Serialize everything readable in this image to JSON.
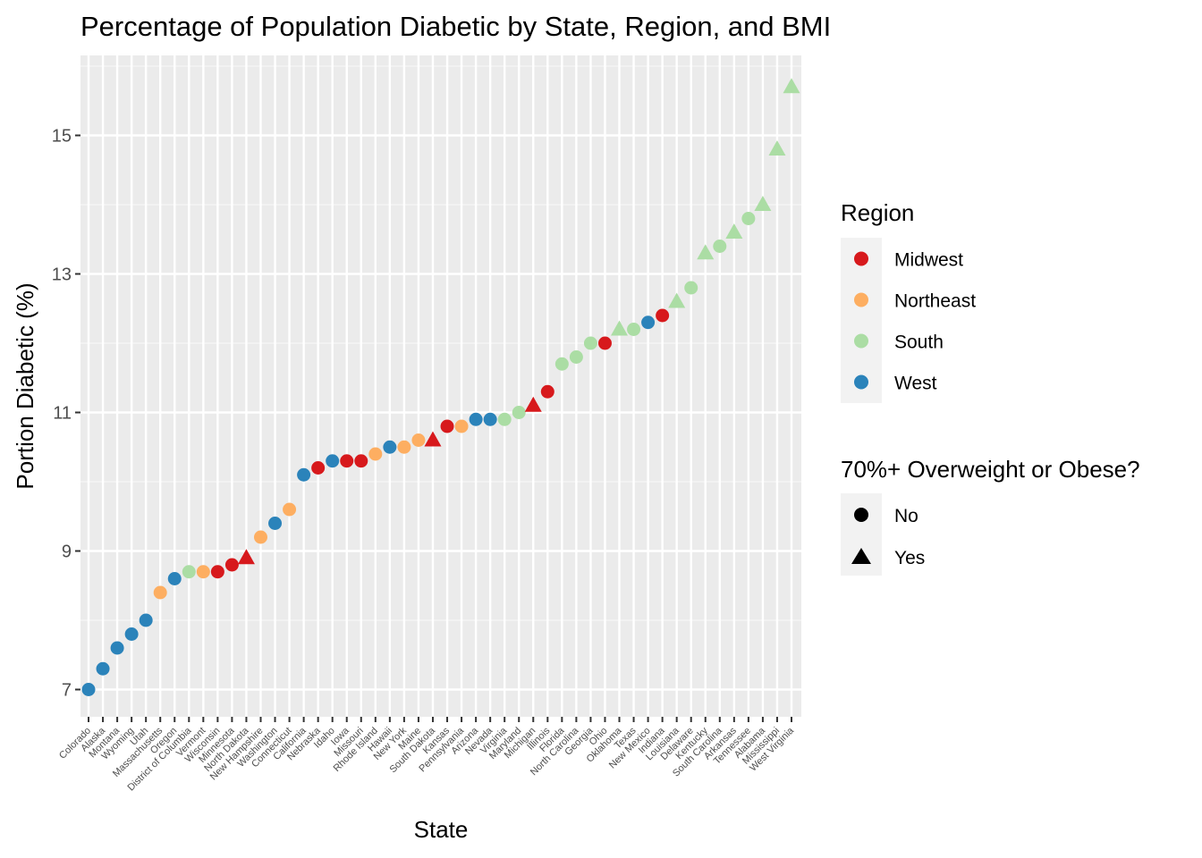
{
  "chart_data": {
    "type": "scatter",
    "title": "Percentage of Population Diabetic by State, Region, and BMI",
    "xlabel": "State",
    "ylabel": "Portion Diabetic (%)",
    "ylim": [
      6.6,
      16.1
    ],
    "yticks": [
      7,
      9,
      11,
      13,
      15
    ],
    "grid": true,
    "legend_position": "right",
    "states": [
      "Colorado",
      "Alaska",
      "Montana",
      "Wyoming",
      "Utah",
      "Massachusetts",
      "Oregon",
      "District of Columbia",
      "Vermont",
      "Wisconsin",
      "Minnesota",
      "North Dakota",
      "New Hampshire",
      "Washington",
      "Connecticut",
      "California",
      "Nebraska",
      "Idaho",
      "Iowa",
      "Missouri",
      "Rhode Island",
      "Hawaii",
      "New York",
      "Maine",
      "South Dakota",
      "Kansas",
      "Pennsylvania",
      "Arizona",
      "Nevada",
      "Virginia",
      "Maryland",
      "Michigan",
      "Illinois",
      "Florida",
      "North Carolina",
      "Georgia",
      "Ohio",
      "Oklahoma",
      "Texas",
      "New Mexico",
      "Indiana",
      "Louisiana",
      "Delaware",
      "Kentucky",
      "South Carolina",
      "Arkansas",
      "Tennessee",
      "Alabama",
      "Mississippi",
      "West Virginia"
    ],
    "values": [
      7.0,
      7.3,
      7.6,
      7.8,
      8.0,
      8.4,
      8.6,
      8.7,
      8.7,
      8.7,
      8.8,
      8.9,
      9.2,
      9.4,
      9.6,
      10.1,
      10.2,
      10.3,
      10.3,
      10.3,
      10.4,
      10.5,
      10.5,
      10.6,
      10.6,
      10.8,
      10.8,
      10.9,
      10.9,
      10.9,
      11.0,
      11.1,
      11.3,
      11.7,
      11.8,
      12.0,
      12.0,
      12.2,
      12.2,
      12.3,
      12.4,
      12.6,
      12.8,
      13.3,
      13.4,
      13.6,
      13.8,
      14.0,
      14.8,
      15.7
    ],
    "regions": [
      "West",
      "West",
      "West",
      "West",
      "West",
      "Northeast",
      "West",
      "South",
      "Northeast",
      "Midwest",
      "Midwest",
      "Midwest",
      "Northeast",
      "West",
      "Northeast",
      "West",
      "Midwest",
      "West",
      "Midwest",
      "Midwest",
      "Northeast",
      "West",
      "Northeast",
      "Northeast",
      "Midwest",
      "Midwest",
      "Northeast",
      "West",
      "West",
      "South",
      "South",
      "Midwest",
      "Midwest",
      "South",
      "South",
      "South",
      "Midwest",
      "South",
      "South",
      "West",
      "Midwest",
      "South",
      "South",
      "South",
      "South",
      "South",
      "South",
      "South",
      "South",
      "South"
    ],
    "overweight": [
      "No",
      "No",
      "No",
      "No",
      "No",
      "No",
      "No",
      "No",
      "No",
      "No",
      "No",
      "Yes",
      "No",
      "No",
      "No",
      "No",
      "No",
      "No",
      "No",
      "No",
      "No",
      "No",
      "No",
      "No",
      "Yes",
      "No",
      "No",
      "No",
      "No",
      "No",
      "No",
      "Yes",
      "No",
      "No",
      "No",
      "No",
      "No",
      "Yes",
      "No",
      "No",
      "No",
      "Yes",
      "No",
      "Yes",
      "No",
      "Yes",
      "No",
      "Yes",
      "Yes",
      "Yes"
    ],
    "legend_region": {
      "title": "Region",
      "items": [
        {
          "name": "Midwest",
          "color": "#d7191c"
        },
        {
          "name": "Northeast",
          "color": "#fdae61"
        },
        {
          "name": "South",
          "color": "#abdda4"
        },
        {
          "name": "West",
          "color": "#2b83ba"
        }
      ]
    },
    "legend_shape": {
      "title": "70%+ Overweight or Obese?",
      "items": [
        {
          "name": "No",
          "shape": "circle"
        },
        {
          "name": "Yes",
          "shape": "triangle"
        }
      ]
    }
  }
}
